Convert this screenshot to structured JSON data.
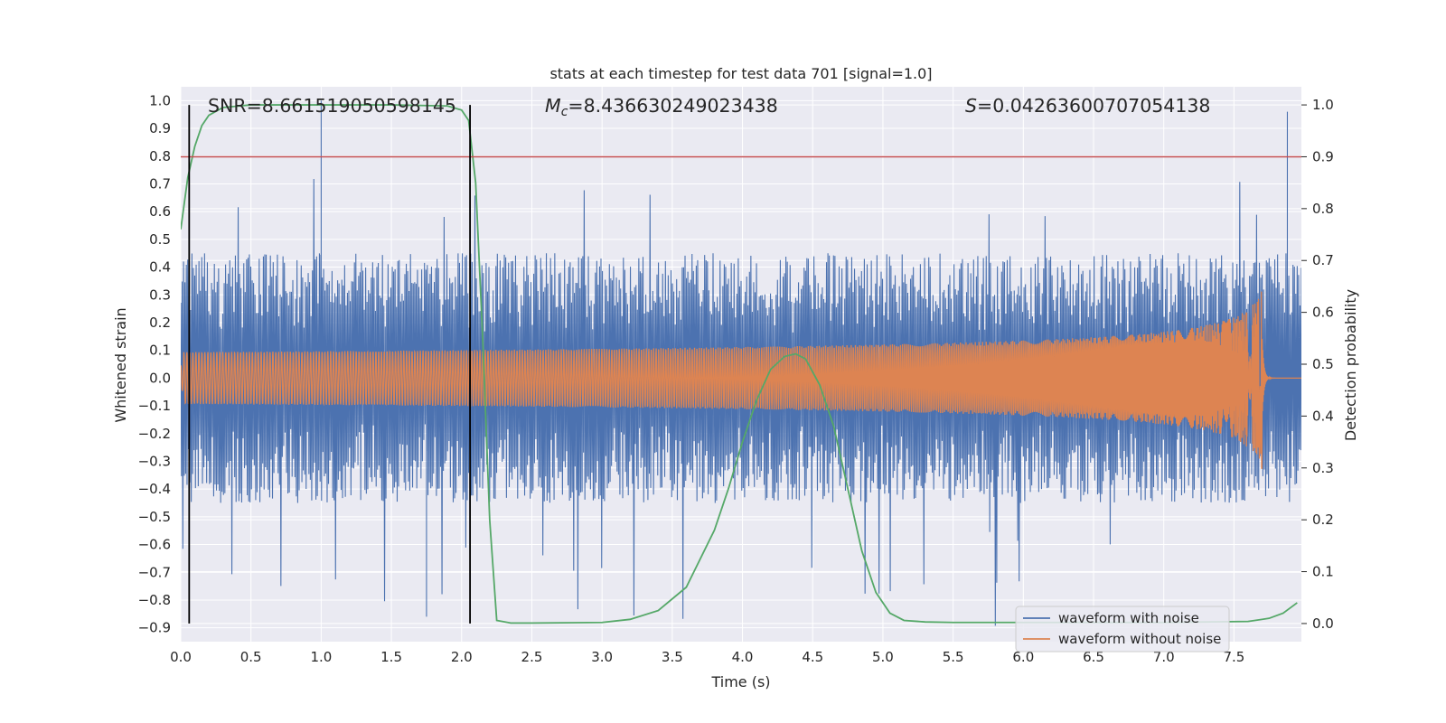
{
  "chart_data": {
    "type": "line",
    "title": "stats at each timestep for test data 701 [signal=1.0]",
    "xlabel": "Time (s)",
    "ylabel_left": "Whitened strain",
    "ylabel_right": "Detection probability",
    "xlim": [
      0,
      7.98
    ],
    "ylim_left": [
      -0.95,
      1.05
    ],
    "ylim_right": [
      -0.035,
      1.035
    ],
    "x_ticks": [
      "0.0",
      "0.5",
      "1.0",
      "1.5",
      "2.0",
      "2.5",
      "3.0",
      "3.5",
      "4.0",
      "4.5",
      "5.0",
      "5.5",
      "6.0",
      "6.5",
      "7.0",
      "7.5"
    ],
    "y_left_ticks": [
      "1.0",
      "0.9",
      "0.8",
      "0.7",
      "0.6",
      "0.5",
      "0.4",
      "0.3",
      "0.2",
      "0.1",
      "0.0",
      "−0.1",
      "−0.2",
      "−0.3",
      "−0.4",
      "−0.5",
      "−0.6",
      "−0.7",
      "−0.8",
      "−0.9"
    ],
    "y_right_ticks": [
      "1.0",
      "0.9",
      "0.8",
      "0.7",
      "0.6",
      "0.5",
      "0.4",
      "0.3",
      "0.2",
      "0.1",
      "0.0"
    ],
    "grid": true,
    "legend_position": "lower-right",
    "stats": {
      "snr_text": "SNR=8.661519050598145",
      "mc_symbol": "M",
      "mc_subscript": "c",
      "mc_value": "=8.436630249023438",
      "s_symbol": "S",
      "s_value": "=0.04263600707054138"
    },
    "threshold": {
      "axis": "right",
      "value": 0.9,
      "color": "#c44e52"
    },
    "vertical_lines": [
      {
        "x": 0.06,
        "color": "#000000"
      },
      {
        "x": 2.06,
        "color": "#000000"
      }
    ],
    "series": [
      {
        "name": "waveform with noise",
        "axis": "left",
        "color": "#4c72b0",
        "kind": "noise",
        "envelope_typical": 0.45,
        "spikes": [
          {
            "x": 1.0,
            "y": 1.0
          },
          {
            "x": 7.88,
            "y": 0.96
          },
          {
            "x": 0.06,
            "y": -0.86
          },
          {
            "x": 1.75,
            "y": -0.86
          }
        ]
      },
      {
        "name": "waveform without noise",
        "axis": "left",
        "color": "#dd8452",
        "kind": "chirp",
        "t_merge": 7.7,
        "peak_amplitude": 0.33
      },
      {
        "name": "",
        "axis": "right",
        "color": "#55a868",
        "kind": "line",
        "x": [
          0.0,
          0.05,
          0.1,
          0.15,
          0.2,
          0.3,
          0.5,
          1.0,
          1.5,
          1.9,
          2.0,
          2.05,
          2.1,
          2.15,
          2.2,
          2.25,
          2.35,
          2.5,
          3.0,
          3.2,
          3.4,
          3.6,
          3.8,
          3.9,
          4.0,
          4.1,
          4.2,
          4.3,
          4.38,
          4.45,
          4.55,
          4.65,
          4.75,
          4.85,
          4.95,
          5.05,
          5.15,
          5.3,
          5.5,
          6.0,
          7.0,
          7.6,
          7.75,
          7.85,
          7.95
        ],
        "y": [
          0.76,
          0.86,
          0.92,
          0.96,
          0.98,
          0.995,
          1.0,
          1.0,
          1.0,
          0.998,
          0.99,
          0.97,
          0.85,
          0.55,
          0.2,
          0.006,
          0.001,
          0.001,
          0.002,
          0.008,
          0.025,
          0.07,
          0.18,
          0.26,
          0.35,
          0.43,
          0.49,
          0.515,
          0.52,
          0.51,
          0.46,
          0.38,
          0.26,
          0.14,
          0.06,
          0.02,
          0.006,
          0.003,
          0.002,
          0.002,
          0.002,
          0.004,
          0.01,
          0.02,
          0.04
        ]
      }
    ]
  }
}
